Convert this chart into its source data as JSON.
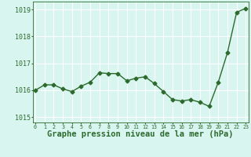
{
  "x": [
    0,
    1,
    2,
    3,
    4,
    5,
    6,
    7,
    8,
    9,
    10,
    11,
    12,
    13,
    14,
    15,
    16,
    17,
    18,
    19,
    20,
    21,
    22,
    23
  ],
  "y": [
    1016.0,
    1016.2,
    1016.2,
    1016.05,
    1015.95,
    1016.15,
    1016.3,
    1016.65,
    1016.62,
    1016.62,
    1016.35,
    1016.45,
    1016.5,
    1016.25,
    1015.95,
    1015.65,
    1015.6,
    1015.65,
    1015.55,
    1015.4,
    1016.3,
    1017.4,
    1018.9,
    1019.05
  ],
  "line_color": "#2d6a2d",
  "marker_color": "#2d6a2d",
  "bg_color": "#d8f5f0",
  "grid_color": "#ffffff",
  "xlabel": "Graphe pression niveau de la mer (hPa)",
  "xlabel_fontsize": 7.5,
  "xlabel_color": "#2d6a2d",
  "tick_color": "#2d6a2d",
  "ylim_min": 1014.8,
  "ylim_max": 1019.3,
  "ytick_positions": [
    1015,
    1016,
    1017,
    1018,
    1019
  ],
  "ytick_labels": [
    "1015",
    "1016",
    "1017",
    "1018",
    "1019"
  ],
  "xlim_min": -0.3,
  "xlim_max": 23.3,
  "xtick_labels": [
    "0",
    "1",
    "2",
    "3",
    "4",
    "5",
    "6",
    "7",
    "8",
    "9",
    "10",
    "11",
    "12",
    "13",
    "14",
    "15",
    "16",
    "17",
    "18",
    "19",
    "20",
    "21",
    "22",
    "23"
  ],
  "grid_linewidth": 0.8,
  "line_width": 1.0,
  "marker_size": 2.5,
  "marker_style": "D"
}
